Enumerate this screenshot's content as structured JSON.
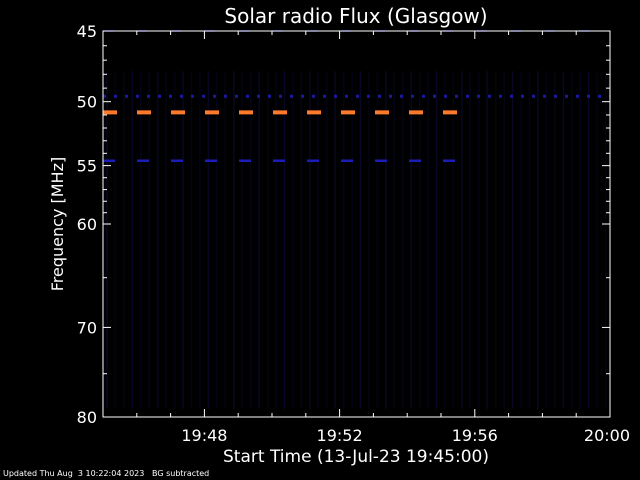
{
  "chart_data": {
    "type": "heatmap",
    "title": "Solar radio Flux (Glasgow)",
    "xlabel": "Start Time (13-Jul-23 19:45:00)",
    "ylabel": "Frequency [MHz]",
    "x_range_minutes": [
      0,
      15
    ],
    "y_range_mhz": [
      45,
      80
    ],
    "y_scale": "log",
    "x_tick_labels": [
      "19:48",
      "19:52",
      "19:56",
      "20:00"
    ],
    "x_tick_minutes": [
      3,
      7,
      11,
      15
    ],
    "y_tick_labels": [
      "45",
      "50",
      "55",
      "60",
      "70",
      "80"
    ],
    "y_tick_values": [
      45,
      50,
      55,
      60,
      70,
      80
    ],
    "background_color": "#000000",
    "axis_color": "#ffffff",
    "bands": [
      {
        "freq_mhz": 45.0,
        "start_min": 0.0,
        "end_min": 15.0,
        "color": "#101070",
        "style": "dashed-faint"
      },
      {
        "freq_mhz": 49.6,
        "start_min": 0.0,
        "end_min": 15.0,
        "color": "#1a1aa0",
        "style": "dotted"
      },
      {
        "freq_mhz": 50.8,
        "start_min": 0.0,
        "end_min": 10.6,
        "color": "#ff7a2a",
        "style": "dashed-bright"
      },
      {
        "freq_mhz": 54.6,
        "start_min": 0.0,
        "end_min": 10.6,
        "color": "#1c1cb8",
        "style": "dashed"
      }
    ]
  },
  "footer": {
    "updated": "Updated Thu Aug  3 10:22:04 2023",
    "note": "BG subtracted"
  }
}
